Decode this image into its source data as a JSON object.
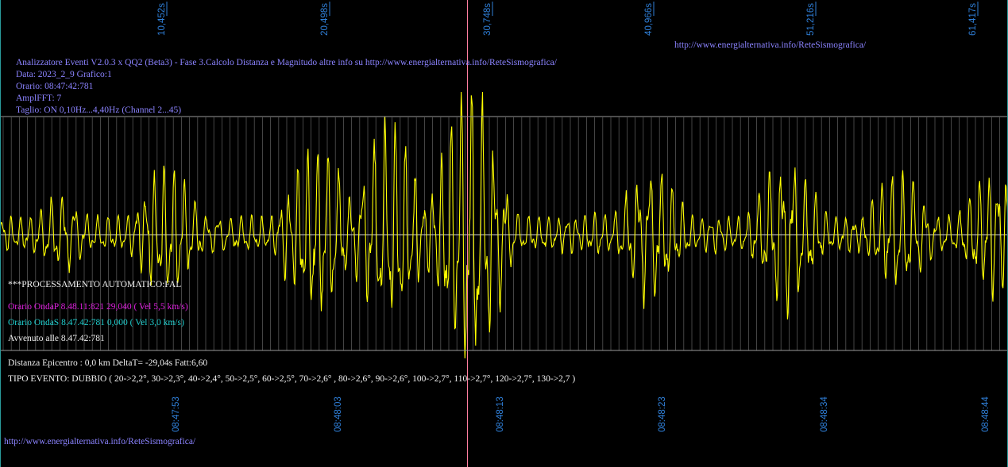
{
  "header": {
    "title_line": "Analizzatore Eventi V2.0.3 x QQ2 (Beta3) - Fase 3.Calcolo Distanza e Magnitudo altre info su http://www.energialternativa.info/ReteSismografica/",
    "data_line": "Data: 2023_2_9 Grafico:1",
    "orario_line": "Orario: 08:47:42:781",
    "ampl_line": "AmplFFT: 7",
    "taglio_line": "Taglio: ON 0,10Hz...4,40Hz       (Channel 2...45)"
  },
  "top_url": "http://www.energialternativa.info/ReteSismografica/",
  "bottom_url": "http://www.energialternativa.info/ReteSismografica/",
  "processing": {
    "auto_label": "***PROCESSAMENTO AUTOMATICO:FAL",
    "onda_p": "Orario OndaP 8.48.11:821  29,040 ( Vel 5,5 km/s)",
    "onda_s": "Orario OndaS 8.47.42:781  0,000 ( Vel 3,0 km/s)",
    "avvenuto": "Avvenuto alle 8.47.42:781"
  },
  "results": {
    "distanza": "Distanza Epicentro : 0,0 km DeltaT= -29,04s  Fatt:6,60",
    "tipo_evento": "TIPO EVENTO: DUBBIO ( 20->2,2°, 30->2,3°, 40->2,4°, 50->2,5°, 60->2,5°, 70->2,6° , 80->2,6°, 90->2,6°, 100->2,7°, 110->2,7°, 120->2,7°, 130->2,7 )"
  },
  "axis": {
    "top_ticks": [
      "10,452s",
      "20,498s",
      "30,748s",
      "40,966s",
      "51,216s",
      "61,417s"
    ],
    "bottom_ticks": [
      "08:47:53",
      "08:48:03",
      "08:48:13",
      "08:48:23",
      "08:48:34",
      "08:48:44"
    ]
  },
  "colors": {
    "background": "#000000",
    "trace": "#ffff00",
    "grid": "#7a7a7a",
    "axis_label": "#2f7fd8",
    "marker": "#ff7fa0",
    "title_text": "#8b83ff",
    "onda_p": "#e020e0",
    "onda_s": "#20d0d0"
  },
  "chart_data": {
    "type": "line",
    "xlabel": "",
    "ylabel": "",
    "grid": true,
    "x_range_s": [
      0,
      63.4
    ],
    "y_range": [
      -1,
      1
    ],
    "envelope_peaks": [
      {
        "t_s": 3.8,
        "amp": 0.25
      },
      {
        "t_s": 10.5,
        "amp": 0.45
      },
      {
        "t_s": 19.9,
        "amp": 0.62
      },
      {
        "t_s": 24.5,
        "amp": 0.7
      },
      {
        "t_s": 29.5,
        "amp": 1.0
      },
      {
        "t_s": 37.5,
        "amp": 0.15
      },
      {
        "t_s": 41.0,
        "amp": 0.45
      },
      {
        "t_s": 49.5,
        "amp": 0.5
      },
      {
        "t_s": 56.5,
        "amp": 0.4
      },
      {
        "t_s": 62.5,
        "amp": 0.42
      }
    ],
    "marker_time_s": 29.4
  }
}
